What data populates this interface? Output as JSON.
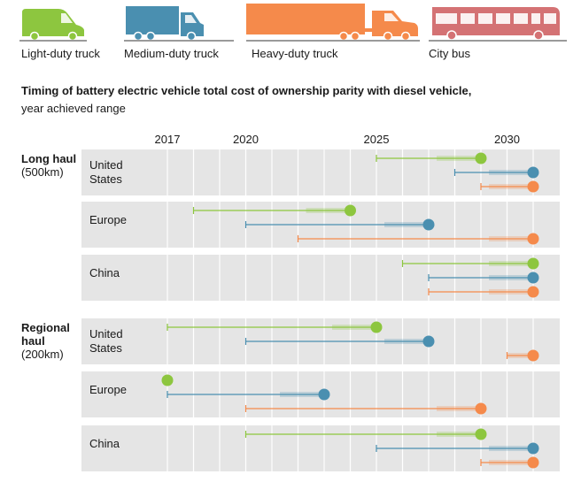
{
  "legend": {
    "light": "Light-duty truck",
    "medium": "Medium-duty truck",
    "heavy": "Heavy-duty truck",
    "bus": "City bus"
  },
  "title": "Timing of battery electric vehicle total cost of ownership parity with diesel vehicle,",
  "subtitle": "year achieved range",
  "sections": {
    "long": {
      "name": "Long haul",
      "distance": "(500km)"
    },
    "regional": {
      "name": "Regional haul",
      "distance": "(200km)"
    }
  },
  "colors": {
    "light": "#8dc63f",
    "medium": "#4a8fb0",
    "heavy": "#f58a4b",
    "bus": "#d47274",
    "panel": "#e5e5e5"
  },
  "chart_data": {
    "type": "range",
    "x_ticks": [
      2017,
      2020,
      2025,
      2030
    ],
    "x_range": [
      2016,
      2031
    ],
    "series": [
      "Light-duty truck",
      "Medium-duty truck",
      "Heavy-duty truck"
    ],
    "groups": [
      {
        "section": "Long haul",
        "region": "United States",
        "ranges": [
          [
            2025,
            2029
          ],
          [
            2028,
            2031
          ],
          [
            2029,
            2031
          ]
        ]
      },
      {
        "section": "Long haul",
        "region": "Europe",
        "ranges": [
          [
            2018,
            2024
          ],
          [
            2020,
            2027
          ],
          [
            2022,
            2031
          ]
        ]
      },
      {
        "section": "Long haul",
        "region": "China",
        "ranges": [
          [
            2026,
            2031
          ],
          [
            2027,
            2031
          ],
          [
            2027,
            2031
          ]
        ]
      },
      {
        "section": "Regional haul",
        "region": "United States",
        "ranges": [
          [
            2017,
            2025
          ],
          [
            2020,
            2027
          ],
          [
            2030,
            2031
          ]
        ]
      },
      {
        "section": "Regional haul",
        "region": "Europe",
        "ranges": [
          [
            2017,
            2017
          ],
          [
            2017,
            2023
          ],
          [
            2020,
            2029
          ]
        ]
      },
      {
        "section": "Regional haul",
        "region": "China",
        "ranges": [
          [
            2020,
            2029
          ],
          [
            2025,
            2031
          ],
          [
            2029,
            2031
          ]
        ]
      }
    ]
  }
}
